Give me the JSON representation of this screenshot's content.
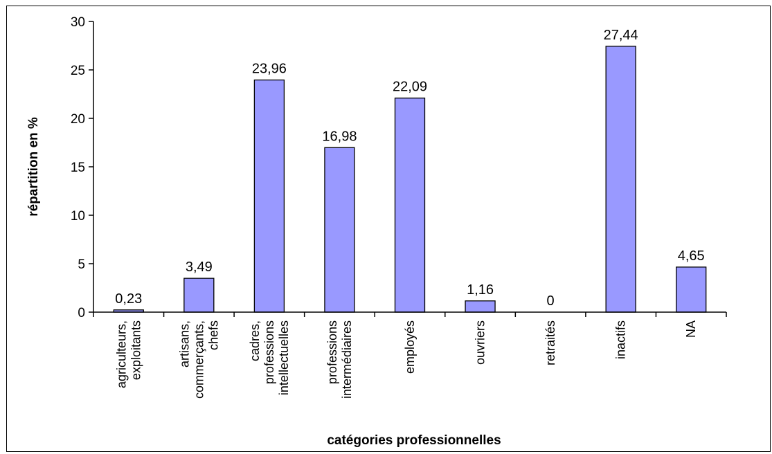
{
  "chart_data": {
    "type": "bar",
    "categories": [
      [
        "agriculteurs,",
        "exploitants"
      ],
      [
        "artisans,",
        "commerçants,",
        "chefs"
      ],
      [
        "cadres,",
        "professions",
        "intellectuelles"
      ],
      [
        "professions",
        "intermédiaires"
      ],
      [
        "employés"
      ],
      [
        "ouvriers"
      ],
      [
        "retraités"
      ],
      [
        "inactifs"
      ],
      [
        "NA"
      ]
    ],
    "values": [
      0.23,
      3.49,
      23.96,
      16.98,
      22.09,
      1.16,
      0,
      27.44,
      4.65
    ],
    "data_labels": [
      "0,23",
      "3,49",
      "23,96",
      "16,98",
      "22,09",
      "1,16",
      "0",
      "27,44",
      "4,65"
    ],
    "xlabel": "catégories professionnelles",
    "ylabel": "répartition en %",
    "ylim": [
      0,
      30
    ],
    "yticks": [
      0,
      5,
      10,
      15,
      20,
      25,
      30
    ],
    "grid": false,
    "bar_color": "#9999ff",
    "bar_edge_color": "#000000"
  }
}
